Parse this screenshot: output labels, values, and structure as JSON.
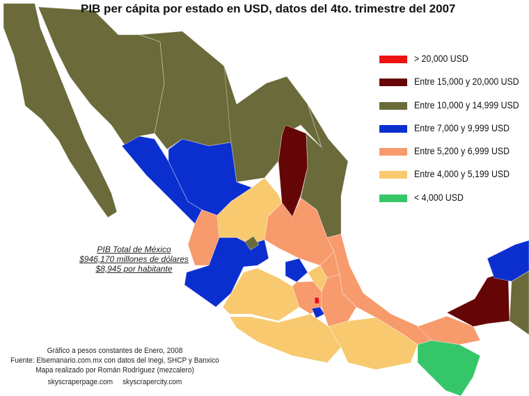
{
  "title": "PIB per cápita por estado en USD, datos del 4to. trimestre del 2007",
  "legend": [
    {
      "label": "> 20,000 USD",
      "color": "#ee1111"
    },
    {
      "label": "Entre 15,000 y 20,000 USD",
      "color": "#650505"
    },
    {
      "label": "Entre 10,000 y 14,999 USD",
      "color": "#6a6a3a"
    },
    {
      "label": "Entre 7,000 y 9,999 USD",
      "color": "#0b2fcf"
    },
    {
      "label": "Entre 5,200 y 6,999 USD",
      "color": "#f79a6c"
    },
    {
      "label": "Entre 4,000 y 5,199 USD",
      "color": "#f8c96e"
    },
    {
      "label": "< 4,000 USD",
      "color": "#36c66a"
    }
  ],
  "note": {
    "line1": "PIB Total de México",
    "line2": "$946,170 millones de dólares",
    "line3": "$8,945 por habitante"
  },
  "credits": {
    "line1": "Gráfico a pesos constantes de Enero, 2008",
    "line2": "Fuente: Elsemanario.com.mx con datos del Inegi, SHCP y Banxico",
    "line3": "Mapa realizado por Román Rodríguez (mezcalero)",
    "sites": "skyscraperpage.com     skyscrapercity.com"
  }
}
